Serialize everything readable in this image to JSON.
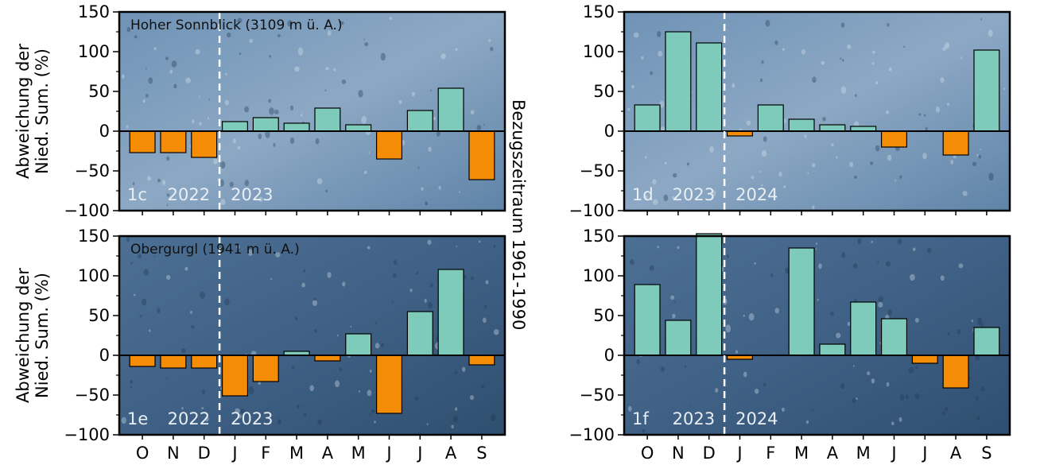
{
  "colors": {
    "positive": "#7fcbbb",
    "negative": "#f48c06",
    "bar_edge": "#000000",
    "divider": "#ffffff"
  },
  "side_label": "Bezugszeitraum 1961-1990",
  "chart_data": [
    {
      "id": "1c",
      "type": "bar",
      "title": "Hoher Sonnblick (3109 m ü. A.)",
      "ylabel_line1": "Abweichung der",
      "ylabel_line2": "Nied. Sum. (%)",
      "categories": [
        "O",
        "N",
        "D",
        "J",
        "F",
        "M",
        "A",
        "M",
        "J",
        "J",
        "A",
        "S"
      ],
      "values": [
        -27,
        -27,
        -33,
        12,
        17,
        10,
        29,
        8,
        -35,
        26,
        54,
        -61
      ],
      "ylim": [
        -100,
        150
      ],
      "yticks": [
        "150",
        "100",
        "50",
        "0",
        "−50",
        "−100"
      ],
      "year_left": "2022",
      "year_right": "2023",
      "background": "light"
    },
    {
      "id": "1d",
      "type": "bar",
      "title": "",
      "categories": [
        "O",
        "N",
        "D",
        "J",
        "F",
        "M",
        "A",
        "M",
        "J",
        "J",
        "A",
        "S"
      ],
      "values": [
        33,
        125,
        111,
        -6,
        33,
        15,
        8,
        6,
        -20,
        0,
        -30,
        102
      ],
      "ylim": [
        -100,
        150
      ],
      "yticks": [
        "150",
        "100",
        "50",
        "0",
        "−50",
        "−100"
      ],
      "year_left": "2023",
      "year_right": "2024",
      "background": "light"
    },
    {
      "id": "1e",
      "type": "bar",
      "title": "Obergurgl (1941 m ü. A.)",
      "ylabel_line1": "Abweichung der",
      "ylabel_line2": "Nied. Sum. (%)",
      "categories": [
        "O",
        "N",
        "D",
        "J",
        "F",
        "M",
        "A",
        "M",
        "J",
        "J",
        "A",
        "S"
      ],
      "values": [
        -14,
        -16,
        -16,
        -51,
        -33,
        5,
        -7,
        27,
        -73,
        55,
        108,
        -12
      ],
      "ylim": [
        -100,
        150
      ],
      "yticks": [
        "150",
        "100",
        "50",
        "0",
        "−50",
        "−100"
      ],
      "year_left": "2022",
      "year_right": "2023",
      "background": "dark"
    },
    {
      "id": "1f",
      "type": "bar",
      "title": "",
      "categories": [
        "O",
        "N",
        "D",
        "J",
        "F",
        "M",
        "A",
        "M",
        "J",
        "J",
        "A",
        "S"
      ],
      "values": [
        89,
        44,
        153,
        -5,
        0,
        135,
        14,
        67,
        46,
        -10,
        -41,
        35
      ],
      "ylim": [
        -100,
        150
      ],
      "yticks": [
        "150",
        "100",
        "50",
        "0",
        "−50",
        "−100"
      ],
      "year_left": "2023",
      "year_right": "2024",
      "background": "dark"
    }
  ]
}
